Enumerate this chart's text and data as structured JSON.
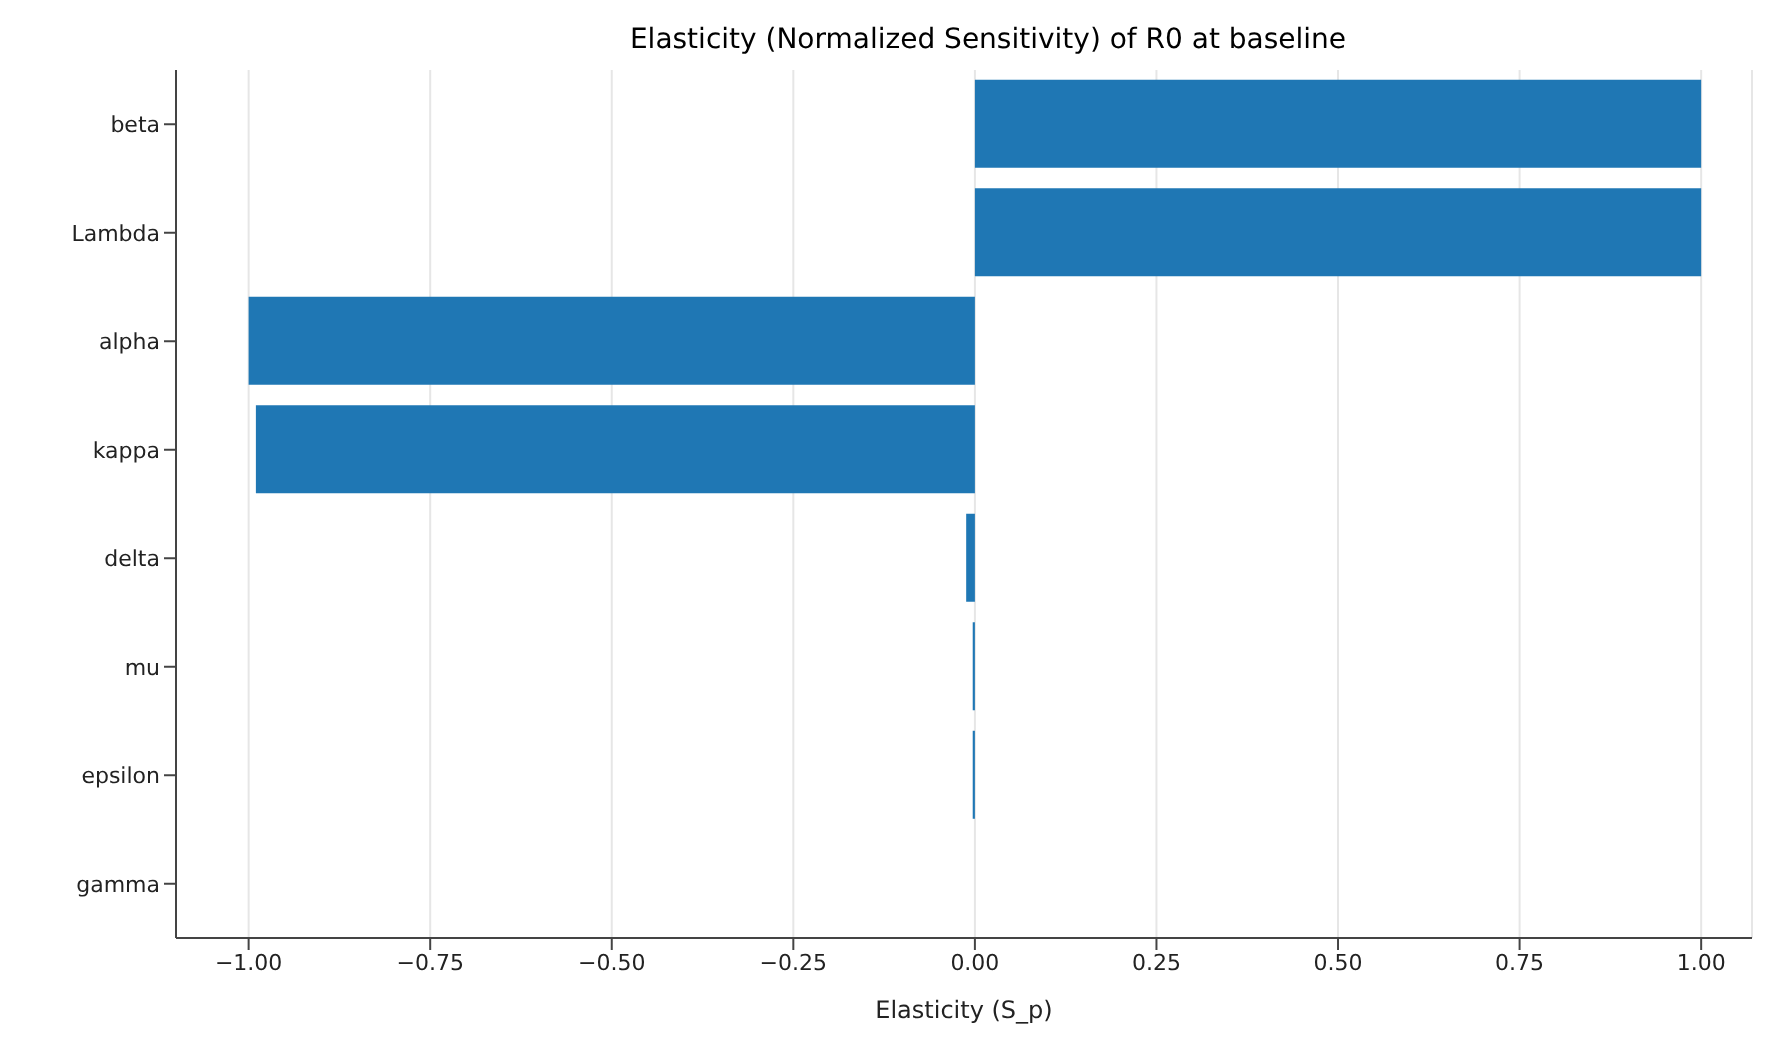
{
  "chart_data": {
    "type": "bar",
    "orientation": "horizontal",
    "title": "Elasticity (Normalized Sensitivity) of R0 at baseline",
    "xlabel": "Elasticity (S_p)",
    "categories": [
      "beta",
      "Lambda",
      "alpha",
      "kappa",
      "delta",
      "mu",
      "epsilon",
      "gamma"
    ],
    "values": [
      1.0,
      1.0,
      -1.0,
      -0.99,
      -0.012,
      -0.003,
      -0.003,
      0
    ],
    "color": "#1f77b4",
    "xlim": [
      -1.1,
      1.07
    ],
    "xticks": [
      {
        "value": -1,
        "label": "−1.00"
      },
      {
        "value": -0.75,
        "label": "−0.75"
      },
      {
        "value": -0.5,
        "label": "−0.50"
      },
      {
        "value": -0.25,
        "label": "−0.25"
      },
      {
        "value": 0,
        "label": "0.00"
      },
      {
        "value": 0.25,
        "label": "0.25"
      },
      {
        "value": 0.5,
        "label": "0.50"
      },
      {
        "value": 0.75,
        "label": "0.75"
      },
      {
        "value": 1,
        "label": "1.00"
      }
    ],
    "grid": "x"
  }
}
